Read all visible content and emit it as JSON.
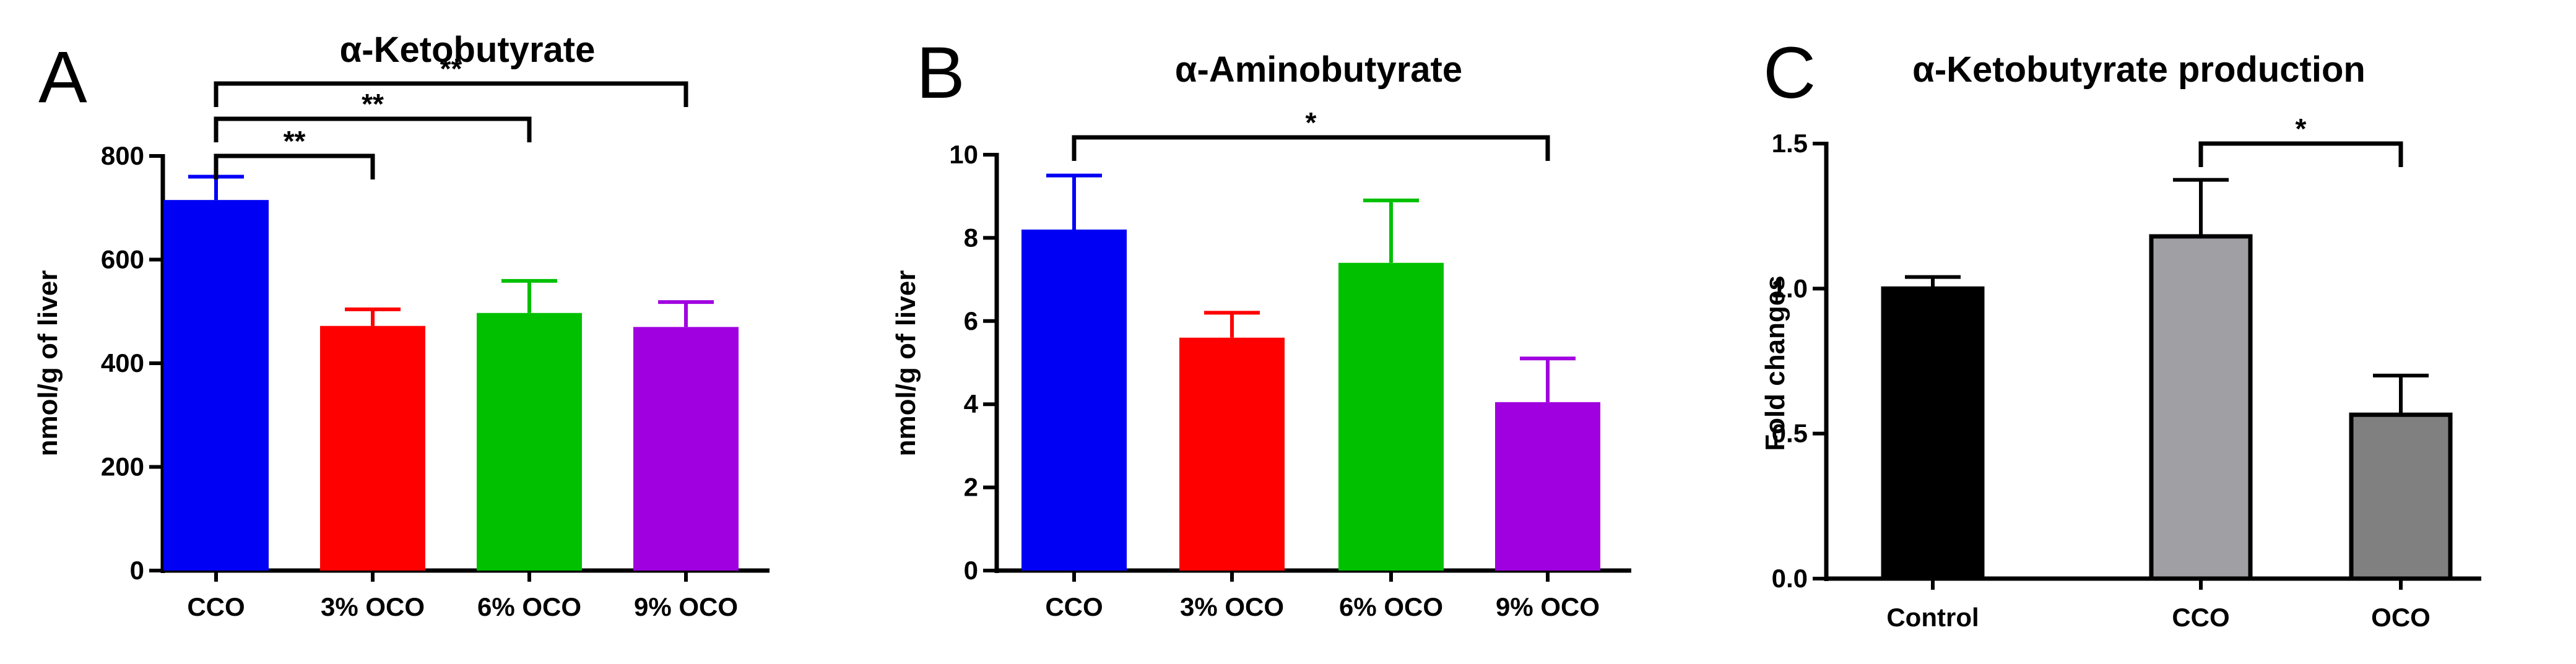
{
  "chart_data": [
    {
      "panel": "A",
      "type": "bar",
      "title": "α-Ketobutyrate",
      "ylabel": "nmol/g of liver",
      "xlabel": "",
      "ylim": [
        0,
        800
      ],
      "yticks": [
        0,
        200,
        400,
        600,
        800
      ],
      "categories": [
        "CCO",
        "3% OCO",
        "6% OCO",
        "9% OCO"
      ],
      "values": [
        715,
        472,
        497,
        470
      ],
      "errors": [
        45,
        32,
        62,
        48
      ],
      "colors": [
        "#0000f5",
        "#ff0000",
        "#00c000",
        "#a000e0"
      ],
      "bar_style": "solid",
      "annotations": [
        {
          "from": 0,
          "to": 1,
          "label": "**"
        },
        {
          "from": 0,
          "to": 2,
          "label": "**"
        },
        {
          "from": 0,
          "to": 3,
          "label": "**"
        }
      ]
    },
    {
      "panel": "B",
      "type": "bar",
      "title": "α-Aminobutyrate",
      "ylabel": "nmol/g of liver",
      "xlabel": "",
      "ylim": [
        0,
        10
      ],
      "yticks": [
        0,
        2,
        4,
        6,
        8,
        10
      ],
      "categories": [
        "CCO",
        "3% OCO",
        "6% OCO",
        "9% OCO"
      ],
      "values": [
        8.2,
        5.6,
        7.4,
        4.05
      ],
      "errors": [
        1.3,
        0.6,
        1.5,
        1.05
      ],
      "colors": [
        "#0000f5",
        "#ff0000",
        "#00c000",
        "#a000e0"
      ],
      "bar_style": "solid",
      "annotations": [
        {
          "from": 0,
          "to": 3,
          "label": "*"
        }
      ]
    },
    {
      "panel": "C",
      "type": "bar",
      "title": "α-Ketobutyrate production",
      "ylabel": "Fold changes",
      "xlabel": "",
      "ylim": [
        0,
        1.5
      ],
      "yticks": [
        "0.0",
        "0.5",
        "1.0",
        "1.5"
      ],
      "categories": [
        "Control",
        "CCO",
        "OCO"
      ],
      "values": [
        1.0,
        1.18,
        0.565
      ],
      "errors": [
        0.04,
        0.195,
        0.135
      ],
      "colors": [
        "#000000",
        "#a0a0a4",
        "#808080"
      ],
      "bar_style": "outlined",
      "annotations": [
        {
          "from": 1,
          "to": 2,
          "label": "*"
        }
      ]
    }
  ]
}
